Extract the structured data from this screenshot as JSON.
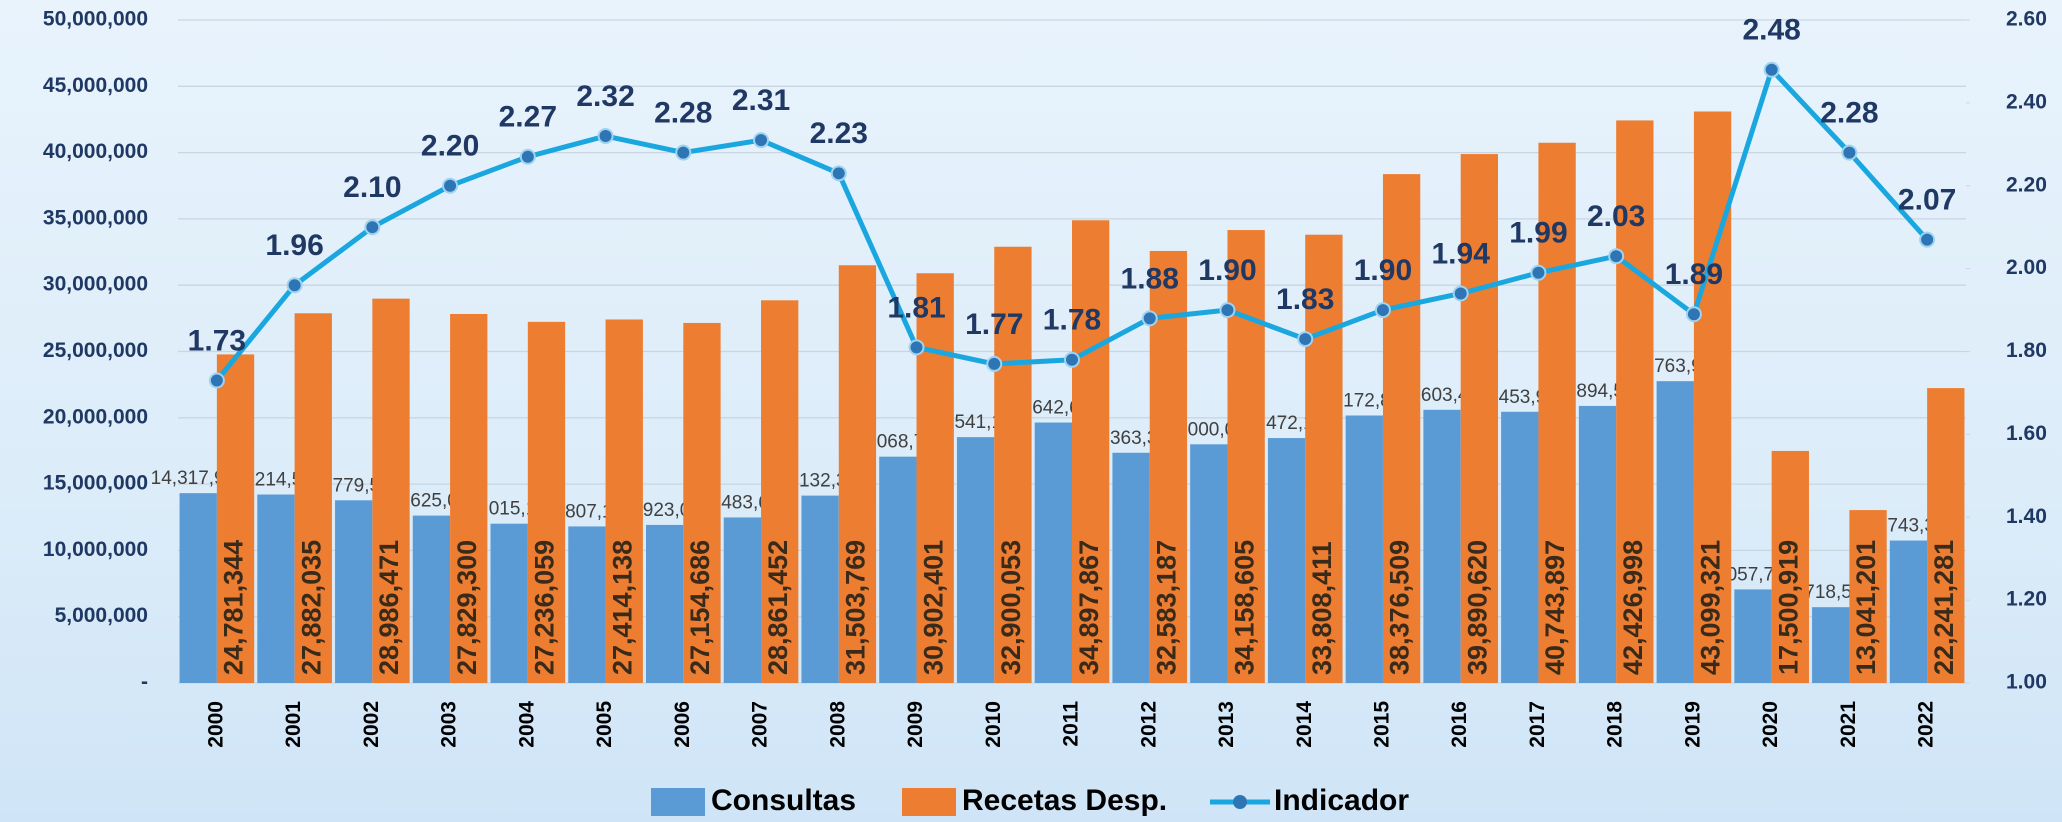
{
  "chart_data": {
    "type": "bar_line",
    "categories": [
      "2000",
      "2001",
      "2002",
      "2003",
      "2004",
      "2005",
      "2006",
      "2007",
      "2008",
      "2009",
      "2010",
      "2011",
      "2012",
      "2013",
      "2014",
      "2015",
      "2016",
      "2017",
      "2018",
      "2019",
      "2020",
      "2021",
      "2022"
    ],
    "series": [
      {
        "name": "Consultas",
        "type": "bar",
        "color": "#5b9bd5",
        "values": [
          14317996,
          14214541,
          13779522,
          12625060,
          12015110,
          11807184,
          11923030,
          12483695,
          14132312,
          17068725,
          18541167,
          19642662,
          17363338,
          18000037,
          18472110,
          20172896,
          20603474,
          20453934,
          20894572,
          22763949,
          7057707,
          5718593,
          10743390
        ],
        "value_labels": [
          "14,317,996",
          "14,214,541",
          "13,779,522",
          "12,625,060",
          "12,015,110",
          "11,807,184",
          "11,923,030",
          "12,483,695",
          "14,132,312",
          "17,068,725",
          "18,541,167",
          "19,642,662",
          "17,363,338",
          "18,000,037",
          "18,472,110",
          "20,172,896",
          "20,603,474",
          "20,453,934",
          "20,894,572",
          "22,763,949",
          "7,057,707",
          "5,718,593",
          "10,743,390"
        ]
      },
      {
        "name": "Recetas Desp.",
        "type": "bar",
        "color": "#ed7d31",
        "values": [
          24781344,
          27882035,
          28986471,
          27829300,
          27236059,
          27414138,
          27154686,
          28861452,
          31503769,
          30902401,
          32900053,
          34897867,
          32583187,
          34158605,
          33808411,
          38376509,
          39890620,
          40743897,
          42426998,
          43099321,
          17500919,
          13041201,
          22241281
        ],
        "value_labels": [
          "24,781,344",
          "27,882,035",
          "28,986,471",
          "27,829,300",
          "27,236,059",
          "27,414,138",
          "27,154,686",
          "28,861,452",
          "31,503,769",
          "30,902,401",
          "32,900,053",
          "34,897,867",
          "32,583,187",
          "34,158,605",
          "33,808,411",
          "38,376,509",
          "39,890,620",
          "40,743,897",
          "42,426,998",
          "43,099,321",
          "17,500,919",
          "13,041,201",
          "22,241,281"
        ]
      },
      {
        "name": "Indicador",
        "type": "line",
        "axis": "y2",
        "color": "#1aa7e0",
        "values": [
          1.73,
          1.96,
          2.1,
          2.2,
          2.27,
          2.32,
          2.28,
          2.31,
          2.23,
          1.81,
          1.77,
          1.78,
          1.88,
          1.9,
          1.83,
          1.9,
          1.94,
          1.99,
          2.03,
          1.89,
          2.48,
          2.28,
          2.07
        ],
        "value_labels": [
          "1.73",
          "1.96",
          "2.10",
          "2.20",
          "2.27",
          "2.32",
          "2.28",
          "2.31",
          "2.23",
          "1.81",
          "1.77",
          "1.78",
          "1.88",
          "1.90",
          "1.83",
          "1.90",
          "1.94",
          "1.99",
          "2.03",
          "1.89",
          "2.48",
          "2.28",
          "2.07"
        ]
      }
    ],
    "ylim": [
      0,
      50000000
    ],
    "yticks": [
      {
        "value": 0,
        "label": "-"
      },
      {
        "value": 5000000,
        "label": "5,000,000"
      },
      {
        "value": 10000000,
        "label": "10,000,000"
      },
      {
        "value": 15000000,
        "label": "15,000,000"
      },
      {
        "value": 20000000,
        "label": "20,000,000"
      },
      {
        "value": 25000000,
        "label": "25,000,000"
      },
      {
        "value": 30000000,
        "label": "30,000,000"
      },
      {
        "value": 35000000,
        "label": "35,000,000"
      },
      {
        "value": 40000000,
        "label": "40,000,000"
      },
      {
        "value": 45000000,
        "label": "45,000,000"
      },
      {
        "value": 50000000,
        "label": "50,000,000"
      }
    ],
    "y2lim": [
      1.0,
      2.6
    ],
    "y2ticks": [
      {
        "value": 1.0,
        "label": "1.00"
      },
      {
        "value": 1.2,
        "label": "1.20"
      },
      {
        "value": 1.4,
        "label": "1.40"
      },
      {
        "value": 1.6,
        "label": "1.60"
      },
      {
        "value": 1.8,
        "label": "1.80"
      },
      {
        "value": 2.0,
        "label": "2.00"
      },
      {
        "value": 2.2,
        "label": "2.20"
      },
      {
        "value": 2.4,
        "label": "2.40"
      },
      {
        "value": 2.6,
        "label": "2.60"
      }
    ],
    "grid": true,
    "legend": "bottom"
  }
}
